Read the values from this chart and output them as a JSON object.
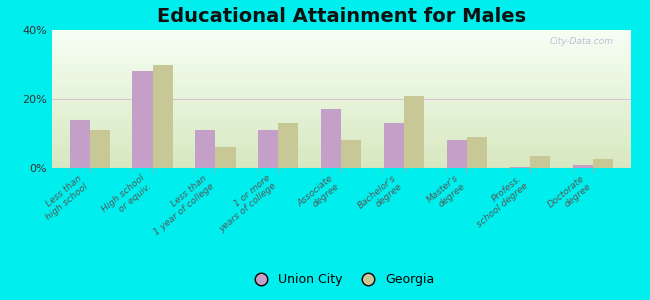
{
  "title": "Educational Attainment for Males",
  "categories": [
    "Less than\nhigh school",
    "High school\nor equiv.",
    "Less than\n1 year of college",
    "1 or more\nyears of college",
    "Associate\ndegree",
    "Bachelor's\ndegree",
    "Master's\ndegree",
    "Profess.\nschool degree",
    "Doctorate\ndegree"
  ],
  "union_city": [
    14.0,
    28.0,
    11.0,
    11.0,
    17.0,
    13.0,
    8.0,
    0.3,
    1.0
  ],
  "georgia": [
    11.0,
    30.0,
    6.0,
    13.0,
    8.0,
    21.0,
    9.0,
    3.5,
    2.5
  ],
  "union_city_color": "#c4a0c8",
  "georgia_color": "#c8c896",
  "outer_bg": "#00eeee",
  "plot_bg_top": "#f5fff5",
  "plot_bg_bottom": "#d8e8c0",
  "ylim": [
    0,
    40
  ],
  "yticks": [
    0,
    20,
    40
  ],
  "ytick_labels": [
    "0%",
    "20%",
    "40%"
  ],
  "title_fontsize": 14,
  "tick_fontsize": 6.5,
  "legend_union_city": "Union City",
  "legend_georgia": "Georgia",
  "watermark": "City-Data.com"
}
